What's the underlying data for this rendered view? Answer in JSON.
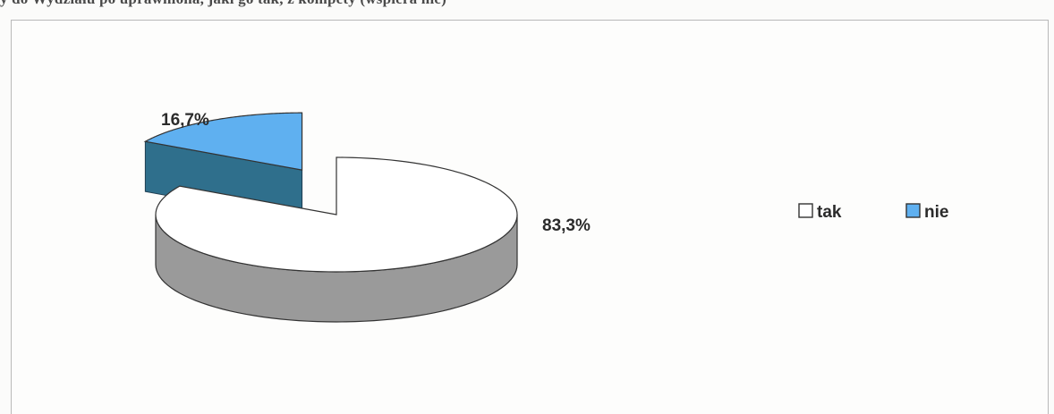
{
  "caption_fragment": "y do Wydziału po uprawniona, jaki go tak, z kompety (wspiera nie)",
  "chart_data": {
    "type": "pie",
    "style": "3d-exploded",
    "title": "",
    "slices": [
      {
        "label": "tak",
        "value": 83.3,
        "data_label": "83,3%",
        "color": "#ffffff",
        "side_color": "#9a9a9a"
      },
      {
        "label": "nie",
        "value": 16.7,
        "data_label": "16,7%",
        "color": "#5fb0f0",
        "side_color": "#2f6f8c"
      }
    ],
    "legend_position": "right"
  }
}
